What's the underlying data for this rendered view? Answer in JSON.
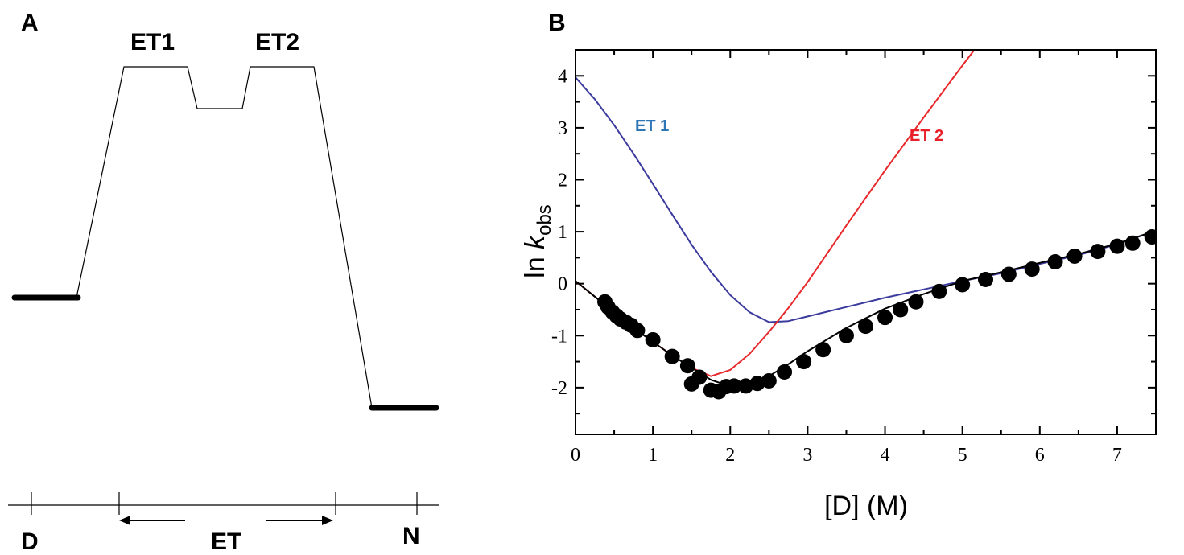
{
  "panel_a": {
    "label": "A",
    "states": [
      {
        "name": "D",
        "energy": 0.0
      },
      {
        "name": "ET1",
        "energy": 1.0
      },
      {
        "name": "intermediate",
        "energy": 0.82
      },
      {
        "name": "ET2",
        "energy": 1.0
      },
      {
        "name": "N",
        "energy": -0.47
      }
    ],
    "barrier_labels": [
      "ET1",
      "ET2"
    ],
    "axis_labels": {
      "left": "D",
      "middle": "ET",
      "right": "N"
    }
  },
  "chart_data": {
    "type": "scatter",
    "panel_label": "B",
    "xlabel": "[D] (M)",
    "ylabel_prefix": "ln ",
    "ylabel_k": "k",
    "ylabel_sub": "obs",
    "xlim": [
      0,
      7.5
    ],
    "ylim": [
      -2.9,
      4.5
    ],
    "xticks": [
      0,
      1,
      2,
      3,
      4,
      5,
      6,
      7
    ],
    "yticks": [
      -2,
      -1,
      0,
      1,
      2,
      3,
      4
    ],
    "series": [
      {
        "name": "ET 1",
        "kind": "line",
        "color": "#3b3b9e",
        "label_color": "#2e75b6",
        "points": [
          [
            0,
            3.97
          ],
          [
            0.25,
            3.55
          ],
          [
            0.5,
            3.05
          ],
          [
            0.75,
            2.5
          ],
          [
            1.0,
            1.92
          ],
          [
            1.25,
            1.33
          ],
          [
            1.5,
            0.75
          ],
          [
            1.75,
            0.23
          ],
          [
            2.0,
            -0.22
          ],
          [
            2.25,
            -0.55
          ],
          [
            2.5,
            -0.74
          ],
          [
            2.75,
            -0.72
          ],
          [
            3.0,
            -0.63
          ],
          [
            3.5,
            -0.45
          ],
          [
            4.0,
            -0.27
          ],
          [
            4.5,
            -0.11
          ],
          [
            5.0,
            0.05
          ],
          [
            5.5,
            0.2
          ],
          [
            6.0,
            0.38
          ],
          [
            6.5,
            0.55
          ],
          [
            7.0,
            0.76
          ],
          [
            7.5,
            1.02
          ]
        ]
      },
      {
        "name": "ET 2",
        "kind": "line",
        "color": "#e8282b",
        "label_color": "#e8202a",
        "points": [
          [
            0,
            0.05
          ],
          [
            0.25,
            -0.25
          ],
          [
            0.5,
            -0.55
          ],
          [
            0.75,
            -0.85
          ],
          [
            1.0,
            -1.12
          ],
          [
            1.25,
            -1.38
          ],
          [
            1.5,
            -1.62
          ],
          [
            1.75,
            -1.78
          ],
          [
            2.0,
            -1.66
          ],
          [
            2.25,
            -1.35
          ],
          [
            2.5,
            -0.93
          ],
          [
            2.75,
            -0.47
          ],
          [
            3.0,
            0.03
          ],
          [
            3.5,
            1.12
          ],
          [
            4.0,
            2.18
          ],
          [
            4.5,
            3.2
          ],
          [
            5.0,
            4.2
          ],
          [
            5.4,
            4.98
          ]
        ]
      },
      {
        "name": "",
        "kind": "line",
        "color": "#000000",
        "points": [
          [
            0,
            0.05
          ],
          [
            0.25,
            -0.25
          ],
          [
            0.5,
            -0.55
          ],
          [
            0.75,
            -0.85
          ],
          [
            1.0,
            -1.12
          ],
          [
            1.25,
            -1.38
          ],
          [
            1.5,
            -1.62
          ],
          [
            1.75,
            -1.85
          ],
          [
            2.0,
            -1.98
          ],
          [
            2.25,
            -1.9
          ],
          [
            2.5,
            -1.78
          ],
          [
            2.75,
            -1.55
          ],
          [
            3.0,
            -1.3
          ],
          [
            3.5,
            -0.85
          ],
          [
            4.0,
            -0.48
          ],
          [
            4.5,
            -0.2
          ],
          [
            5.0,
            0.05
          ],
          [
            5.5,
            0.22
          ],
          [
            6.0,
            0.4
          ],
          [
            6.5,
            0.57
          ],
          [
            7.0,
            0.77
          ],
          [
            7.5,
            1.02
          ]
        ]
      },
      {
        "name": "",
        "kind": "points",
        "color": "#000000",
        "points": [
          [
            0.38,
            -0.35
          ],
          [
            0.42,
            -0.45
          ],
          [
            0.48,
            -0.55
          ],
          [
            0.53,
            -0.62
          ],
          [
            0.58,
            -0.68
          ],
          [
            0.65,
            -0.74
          ],
          [
            0.72,
            -0.8
          ],
          [
            0.8,
            -0.9
          ],
          [
            1.0,
            -1.08
          ],
          [
            1.25,
            -1.4
          ],
          [
            1.45,
            -1.58
          ],
          [
            1.5,
            -1.93
          ],
          [
            1.6,
            -1.8
          ],
          [
            1.75,
            -2.05
          ],
          [
            1.85,
            -2.08
          ],
          [
            1.95,
            -1.98
          ],
          [
            2.05,
            -1.97
          ],
          [
            2.2,
            -1.97
          ],
          [
            2.35,
            -1.92
          ],
          [
            2.5,
            -1.87
          ],
          [
            2.7,
            -1.7
          ],
          [
            2.95,
            -1.5
          ],
          [
            3.2,
            -1.27
          ],
          [
            3.5,
            -1.0
          ],
          [
            3.75,
            -0.82
          ],
          [
            4.0,
            -0.65
          ],
          [
            4.2,
            -0.5
          ],
          [
            4.4,
            -0.35
          ],
          [
            4.7,
            -0.15
          ],
          [
            5.0,
            -0.02
          ],
          [
            5.3,
            0.08
          ],
          [
            5.6,
            0.18
          ],
          [
            5.9,
            0.28
          ],
          [
            6.2,
            0.42
          ],
          [
            6.45,
            0.53
          ],
          [
            6.75,
            0.62
          ],
          [
            7.0,
            0.72
          ],
          [
            7.2,
            0.78
          ],
          [
            7.45,
            0.9
          ]
        ]
      }
    ]
  }
}
